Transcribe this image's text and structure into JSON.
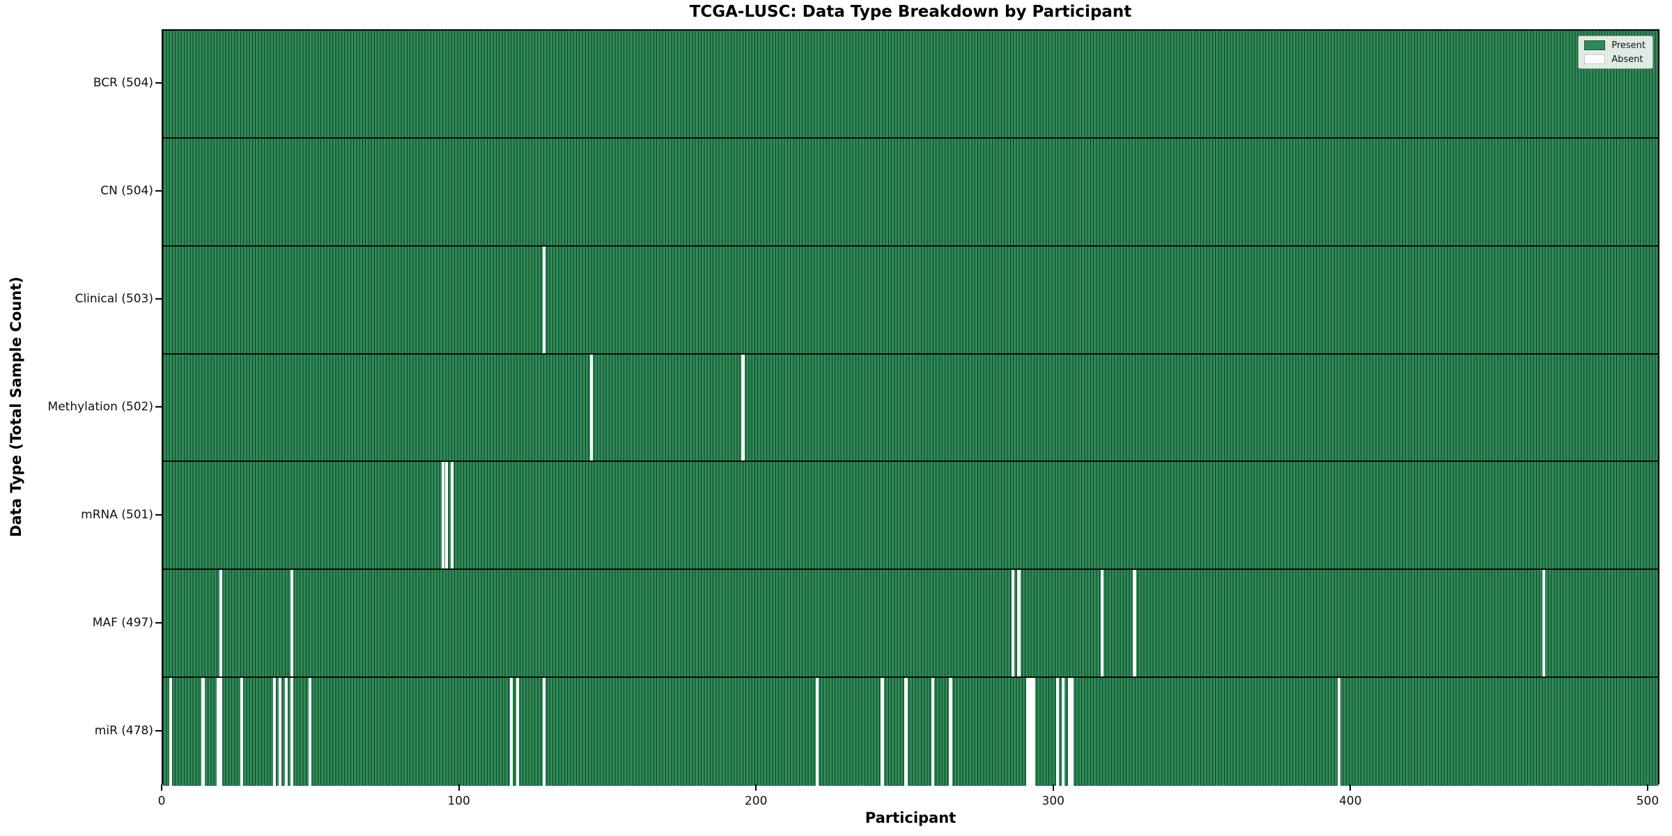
{
  "chart_data": {
    "type": "heatmap",
    "title": "TCGA-LUSC: Data Type Breakdown by Participant",
    "xlabel": "Participant",
    "ylabel": "Data Type (Total Sample Count)",
    "n_participants": 504,
    "x_ticks": [
      0,
      100,
      200,
      300,
      400,
      500
    ],
    "xlim": [
      0,
      504
    ],
    "grid": false,
    "legend_position": "upper right",
    "colors": {
      "present": "#2e8b57",
      "bar_edge": "#123d25",
      "absent": "#ffffff"
    },
    "legend": [
      {
        "label": "Present",
        "color": "#2e8b57",
        "border": "#1a4f31"
      },
      {
        "label": "Absent",
        "color": "#ffffff",
        "border": "#c8c8c8"
      }
    ],
    "rows": [
      {
        "name": "BCR",
        "label": "BCR (504)",
        "count": 504,
        "absent_participants": []
      },
      {
        "name": "CN",
        "label": "CN (504)",
        "count": 504,
        "absent_participants": []
      },
      {
        "name": "Clinical",
        "label": "Clinical (503)",
        "count": 503,
        "absent_participants": [
          129
        ]
      },
      {
        "name": "Methylation",
        "label": "Methylation (502)",
        "count": 502,
        "absent_participants": [
          145,
          196
        ]
      },
      {
        "name": "mRNA",
        "label": "mRNA (501)",
        "count": 501,
        "absent_participants": [
          95,
          96,
          98
        ]
      },
      {
        "name": "MAF",
        "label": "MAF (497)",
        "count": 497,
        "absent_participants": [
          20,
          44,
          287,
          289,
          317,
          328,
          466
        ]
      },
      {
        "name": "miR",
        "label": "miR (478)",
        "count": 478,
        "absent_participants": [
          3,
          14,
          19,
          20,
          27,
          38,
          40,
          42,
          44,
          50,
          118,
          120,
          129,
          221,
          243,
          251,
          260,
          266,
          292,
          293,
          294,
          302,
          304,
          306,
          307,
          397
        ]
      }
    ]
  }
}
